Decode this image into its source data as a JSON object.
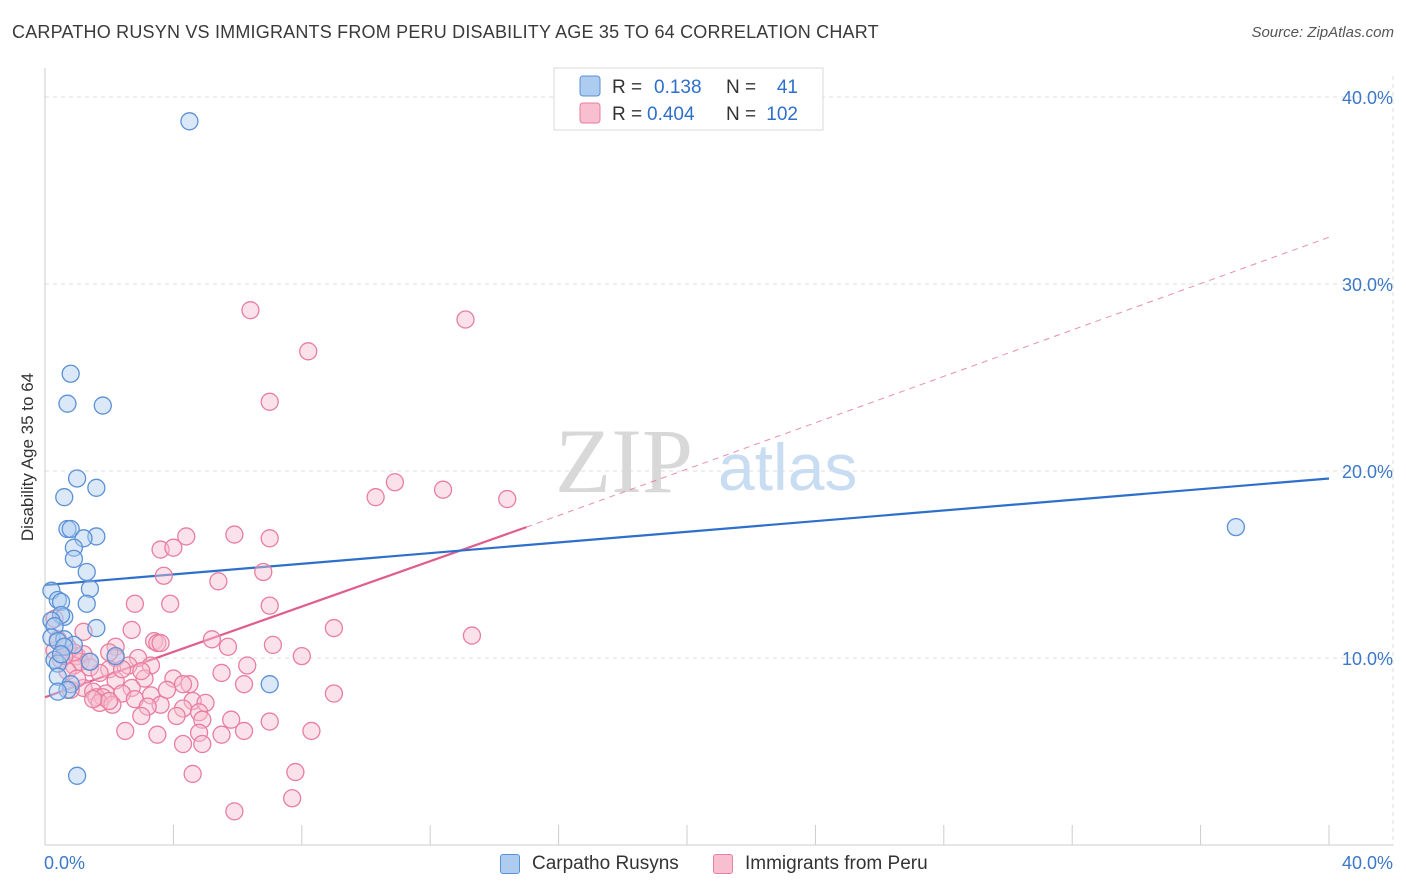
{
  "chart_data": {
    "type": "scatter",
    "title": "CARPATHO RUSYN VS IMMIGRANTS FROM PERU DISABILITY AGE 35 TO 64 CORRELATION CHART",
    "source": "Source: ZipAtlas.com",
    "ylabel": "Disability Age 35 to 64",
    "xlim": [
      0,
      40
    ],
    "ylim": [
      0,
      41
    ],
    "x_tick_labels": [
      "0.0%",
      "40.0%"
    ],
    "y_ticks": [
      10,
      20,
      30,
      40
    ],
    "y_tick_labels": [
      "10.0%",
      "20.0%",
      "30.0%",
      "40.0%"
    ],
    "grid": true,
    "watermark": {
      "zip": "ZIP",
      "atlas": "atlas"
    },
    "legend_box": [
      {
        "r_label": "R =",
        "r": "0.138",
        "n_label": "N =",
        "n": "41"
      },
      {
        "r_label": "R =",
        "r": "0.404",
        "n_label": "N =",
        "n": "102"
      }
    ],
    "colors": {
      "blue_fill": "#aecbf0",
      "blue_stroke": "#5b91d6",
      "blue_line": "#2e6fcc",
      "pink_fill": "#f7bfd0",
      "pink_stroke": "#e87ea0",
      "pink_line": "#e05e8e",
      "value_blue": "#2e6fcc"
    },
    "series": [
      {
        "name": "Carpatho Rusyns",
        "color": "#5b91d6",
        "trend": {
          "x": [
            0,
            40
          ],
          "y": [
            13.9,
            19.6
          ]
        },
        "points": [
          [
            4.5,
            38.7
          ],
          [
            0.8,
            25.2
          ],
          [
            0.7,
            23.6
          ],
          [
            1.8,
            23.5
          ],
          [
            1.0,
            19.6
          ],
          [
            1.6,
            19.1
          ],
          [
            0.6,
            18.6
          ],
          [
            0.7,
            16.9
          ],
          [
            0.8,
            16.9
          ],
          [
            1.6,
            16.5
          ],
          [
            1.2,
            16.4
          ],
          [
            0.9,
            15.9
          ],
          [
            0.9,
            15.3
          ],
          [
            1.3,
            14.6
          ],
          [
            0.2,
            13.6
          ],
          [
            1.4,
            13.7
          ],
          [
            0.4,
            13.1
          ],
          [
            0.5,
            13.0
          ],
          [
            1.3,
            12.9
          ],
          [
            0.6,
            12.2
          ],
          [
            0.5,
            12.3
          ],
          [
            0.2,
            12.0
          ],
          [
            0.3,
            11.7
          ],
          [
            1.6,
            11.6
          ],
          [
            0.2,
            11.1
          ],
          [
            0.6,
            11.0
          ],
          [
            0.4,
            10.9
          ],
          [
            0.9,
            10.7
          ],
          [
            0.6,
            10.6
          ],
          [
            2.2,
            10.1
          ],
          [
            0.3,
            9.9
          ],
          [
            1.4,
            9.8
          ],
          [
            0.4,
            9.7
          ],
          [
            0.4,
            9.0
          ],
          [
            0.8,
            8.6
          ],
          [
            0.7,
            8.3
          ],
          [
            0.4,
            8.2
          ],
          [
            7.0,
            8.6
          ],
          [
            1.0,
            3.7
          ],
          [
            37.1,
            17.0
          ],
          [
            0.5,
            10.2
          ]
        ]
      },
      {
        "name": "Immigrants from Peru",
        "color": "#e87ea0",
        "trend": {
          "x": [
            0,
            15
          ],
          "y": [
            7.9,
            17.0
          ]
        },
        "trend_ext": {
          "x": [
            15,
            40
          ],
          "y": [
            17.0,
            32.5
          ]
        },
        "points": [
          [
            6.4,
            28.6
          ],
          [
            13.1,
            28.1
          ],
          [
            8.2,
            26.4
          ],
          [
            7.0,
            23.7
          ],
          [
            10.9,
            19.4
          ],
          [
            12.4,
            19.0
          ],
          [
            10.3,
            18.6
          ],
          [
            14.4,
            18.5
          ],
          [
            5.9,
            16.6
          ],
          [
            7.0,
            16.4
          ],
          [
            4.4,
            16.5
          ],
          [
            3.6,
            15.8
          ],
          [
            4.0,
            15.9
          ],
          [
            6.8,
            14.6
          ],
          [
            3.7,
            14.4
          ],
          [
            5.4,
            14.1
          ],
          [
            2.8,
            12.9
          ],
          [
            3.9,
            12.9
          ],
          [
            7.0,
            12.8
          ],
          [
            9.0,
            11.6
          ],
          [
            13.3,
            11.2
          ],
          [
            2.7,
            11.5
          ],
          [
            5.2,
            11.0
          ],
          [
            3.4,
            10.9
          ],
          [
            3.5,
            10.8
          ],
          [
            7.1,
            10.7
          ],
          [
            5.7,
            10.6
          ],
          [
            2.2,
            10.6
          ],
          [
            8.0,
            10.1
          ],
          [
            1.0,
            10.1
          ],
          [
            1.2,
            10.2
          ],
          [
            2.2,
            10.0
          ],
          [
            2.9,
            10.0
          ],
          [
            0.3,
            10.4
          ],
          [
            0.7,
            10.6
          ],
          [
            0.5,
            9.9
          ],
          [
            1.1,
            9.8
          ],
          [
            2.6,
            9.6
          ],
          [
            0.9,
            9.6
          ],
          [
            1.4,
            9.5
          ],
          [
            3.3,
            9.6
          ],
          [
            2.0,
            9.4
          ],
          [
            0.7,
            9.3
          ],
          [
            1.7,
            9.2
          ],
          [
            5.5,
            9.2
          ],
          [
            3.1,
            8.9
          ],
          [
            4.0,
            8.9
          ],
          [
            2.2,
            8.8
          ],
          [
            4.5,
            8.6
          ],
          [
            6.2,
            8.6
          ],
          [
            4.3,
            8.6
          ],
          [
            2.7,
            8.4
          ],
          [
            1.2,
            8.4
          ],
          [
            0.8,
            8.3
          ],
          [
            1.5,
            8.2
          ],
          [
            1.9,
            8.1
          ],
          [
            2.4,
            8.1
          ],
          [
            3.3,
            8.0
          ],
          [
            1.6,
            7.9
          ],
          [
            1.8,
            7.9
          ],
          [
            9.0,
            8.1
          ],
          [
            2.8,
            7.8
          ],
          [
            4.6,
            7.7
          ],
          [
            5.0,
            7.6
          ],
          [
            1.7,
            7.6
          ],
          [
            2.1,
            7.5
          ],
          [
            3.6,
            7.5
          ],
          [
            3.2,
            7.4
          ],
          [
            4.3,
            7.3
          ],
          [
            4.8,
            7.1
          ],
          [
            3.0,
            6.9
          ],
          [
            4.1,
            6.9
          ],
          [
            4.9,
            6.7
          ],
          [
            5.8,
            6.7
          ],
          [
            7.0,
            6.6
          ],
          [
            2.5,
            6.1
          ],
          [
            6.2,
            6.1
          ],
          [
            8.3,
            6.1
          ],
          [
            4.8,
            6.0
          ],
          [
            3.5,
            5.9
          ],
          [
            5.5,
            5.9
          ],
          [
            4.3,
            5.4
          ],
          [
            4.9,
            5.4
          ],
          [
            4.6,
            3.8
          ],
          [
            7.8,
            3.9
          ],
          [
            7.7,
            2.5
          ],
          [
            5.9,
            1.8
          ],
          [
            1.2,
            11.4
          ],
          [
            0.4,
            11.0
          ],
          [
            0.3,
            12.1
          ],
          [
            1.4,
            9.8
          ],
          [
            2.4,
            9.4
          ],
          [
            3.0,
            9.3
          ],
          [
            1.0,
            8.9
          ],
          [
            3.8,
            8.3
          ],
          [
            2.0,
            7.7
          ],
          [
            0.9,
            10.3
          ],
          [
            6.3,
            9.6
          ],
          [
            0.6,
            10.1
          ],
          [
            2.0,
            10.3
          ],
          [
            1.5,
            7.8
          ],
          [
            3.6,
            10.8
          ]
        ]
      }
    ]
  }
}
